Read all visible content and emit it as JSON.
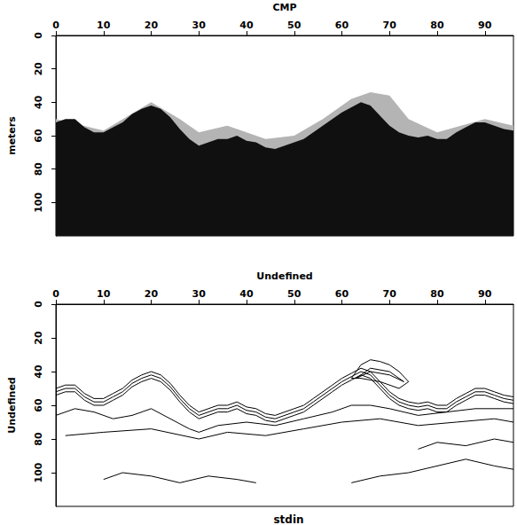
{
  "chart_data": [
    {
      "type": "area",
      "x_label": "CMP",
      "y_label": "meters",
      "xlim": [
        0,
        96
      ],
      "ylim": [
        0,
        120
      ],
      "xticks": [
        0,
        10,
        20,
        30,
        40,
        50,
        60,
        70,
        80,
        90
      ],
      "yticks": [
        0,
        20,
        40,
        60,
        80,
        100
      ],
      "series": [
        {
          "color": "#b4b4b4",
          "x": [
            0,
            10,
            20,
            26,
            30,
            36,
            44,
            50,
            56,
            62,
            66,
            70,
            74,
            80,
            90,
            96
          ],
          "values": [
            50,
            57,
            40,
            50,
            58,
            54,
            62,
            60,
            50,
            38,
            34,
            36,
            50,
            58,
            50,
            54
          ]
        },
        {
          "color": "#101010",
          "x": [
            0,
            2,
            4,
            6,
            8,
            10,
            12,
            14,
            16,
            18,
            20,
            22,
            24,
            26,
            28,
            30,
            32,
            34,
            36,
            38,
            40,
            42,
            44,
            46,
            48,
            50,
            52,
            54,
            56,
            58,
            60,
            62,
            64,
            66,
            68,
            70,
            72,
            74,
            76,
            78,
            80,
            82,
            84,
            86,
            88,
            90,
            92,
            94,
            96
          ],
          "values": [
            52,
            50,
            50,
            55,
            58,
            58,
            55,
            52,
            47,
            44,
            42,
            44,
            49,
            56,
            62,
            66,
            64,
            62,
            62,
            60,
            63,
            64,
            67,
            68,
            66,
            64,
            62,
            58,
            54,
            50,
            46,
            43,
            40,
            42,
            48,
            54,
            58,
            60,
            61,
            60,
            62,
            62,
            58,
            55,
            52,
            52,
            54,
            56,
            57
          ]
        }
      ]
    },
    {
      "type": "line",
      "x_label": "Undefined",
      "y_label": "Undefined",
      "annotation": "stdin",
      "xlim": [
        0,
        96
      ],
      "ylim": [
        0,
        120
      ],
      "xticks": [
        0,
        10,
        20,
        30,
        40,
        50,
        60,
        70,
        80,
        90
      ],
      "yticks": [
        0,
        20,
        40,
        60,
        80,
        100
      ],
      "series": [
        {
          "color": "#000000",
          "x": [
            0,
            2,
            4,
            6,
            8,
            10,
            12,
            14,
            16,
            18,
            20,
            22,
            24,
            26,
            28,
            30,
            32,
            34,
            36,
            38,
            40,
            42,
            44,
            46,
            48,
            50,
            52,
            54,
            56,
            58,
            60,
            62,
            64,
            66,
            68,
            70,
            72,
            74,
            76,
            78,
            80,
            82,
            84,
            86,
            88,
            90,
            92,
            94,
            96
          ],
          "values": [
            50,
            48,
            48,
            53,
            56,
            56,
            53,
            50,
            45,
            42,
            40,
            42,
            47,
            54,
            60,
            64,
            62,
            60,
            60,
            58,
            61,
            62,
            65,
            66,
            64,
            62,
            60,
            56,
            52,
            48,
            44,
            41,
            38,
            40,
            46,
            52,
            56,
            58,
            59,
            58,
            60,
            60,
            56,
            53,
            50,
            50,
            52,
            54,
            55
          ]
        },
        {
          "color": "#000000",
          "x": [
            0,
            2,
            4,
            6,
            8,
            10,
            12,
            14,
            16,
            18,
            20,
            22,
            24,
            26,
            28,
            30,
            32,
            34,
            36,
            38,
            40,
            42,
            44,
            46,
            48,
            50,
            52,
            54,
            56,
            58,
            60,
            62,
            64,
            66,
            68,
            70,
            72,
            74,
            76,
            78,
            80,
            82,
            84,
            86,
            88,
            90,
            92,
            94,
            96
          ],
          "values": [
            52,
            50,
            50,
            55,
            58,
            58,
            55,
            52,
            47,
            44,
            42,
            44,
            49,
            56,
            62,
            66,
            64,
            62,
            62,
            60,
            63,
            64,
            67,
            68,
            66,
            64,
            62,
            58,
            54,
            50,
            46,
            43,
            40,
            42,
            48,
            54,
            58,
            60,
            61,
            60,
            62,
            62,
            58,
            55,
            52,
            52,
            54,
            56,
            57
          ]
        },
        {
          "color": "#000000",
          "x": [
            0,
            2,
            4,
            6,
            8,
            10,
            12,
            14,
            16,
            18,
            20,
            22,
            24,
            26,
            28,
            30,
            32,
            34,
            36,
            38,
            40,
            42,
            44,
            46,
            48,
            50,
            52,
            54,
            56,
            58,
            60,
            62,
            64,
            66,
            68,
            70,
            72,
            74,
            76,
            78,
            80,
            82,
            84,
            86,
            88,
            90,
            92,
            94,
            96
          ],
          "values": [
            54,
            52,
            52,
            57,
            60,
            60,
            57,
            54,
            49,
            46,
            44,
            46,
            51,
            58,
            64,
            68,
            66,
            64,
            64,
            62,
            65,
            66,
            69,
            70,
            68,
            66,
            64,
            60,
            56,
            52,
            48,
            45,
            42,
            44,
            50,
            56,
            60,
            62,
            63,
            62,
            64,
            64,
            60,
            57,
            54,
            54,
            56,
            58,
            59
          ]
        },
        {
          "color": "#000000",
          "x": [
            62,
            64,
            66,
            68,
            70,
            72,
            74,
            72,
            68,
            64,
            62
          ],
          "values": [
            44,
            36,
            33,
            34,
            36,
            40,
            46,
            50,
            46,
            44,
            44
          ]
        },
        {
          "color": "#000000",
          "x": [
            63,
            66,
            70,
            73,
            70,
            66,
            63
          ],
          "values": [
            44,
            38,
            40,
            46,
            42,
            40,
            44
          ]
        },
        {
          "color": "#000000",
          "x": [
            0,
            4,
            8,
            12,
            16,
            20,
            24,
            28,
            30,
            34,
            40,
            46,
            52,
            58,
            62,
            66,
            70,
            76,
            82,
            88,
            96
          ],
          "values": [
            66,
            62,
            64,
            68,
            66,
            62,
            68,
            74,
            76,
            72,
            70,
            72,
            68,
            64,
            60,
            60,
            62,
            66,
            64,
            62,
            62
          ]
        },
        {
          "color": "#000000",
          "x": [
            2,
            10,
            20,
            30,
            36,
            44,
            52,
            60,
            68,
            76,
            84,
            92,
            96
          ],
          "values": [
            78,
            76,
            74,
            80,
            76,
            78,
            74,
            70,
            68,
            72,
            70,
            68,
            70
          ]
        },
        {
          "color": "#000000",
          "x": [
            10,
            14,
            20,
            26,
            32,
            38,
            42
          ],
          "values": [
            104,
            100,
            102,
            106,
            102,
            104,
            106
          ]
        },
        {
          "color": "#000000",
          "x": [
            62,
            68,
            74,
            80,
            86,
            92,
            96
          ],
          "values": [
            106,
            102,
            100,
            96,
            92,
            96,
            98
          ]
        },
        {
          "color": "#000000",
          "x": [
            76,
            80,
            86,
            92,
            96
          ],
          "values": [
            86,
            82,
            84,
            80,
            82
          ]
        }
      ]
    }
  ]
}
